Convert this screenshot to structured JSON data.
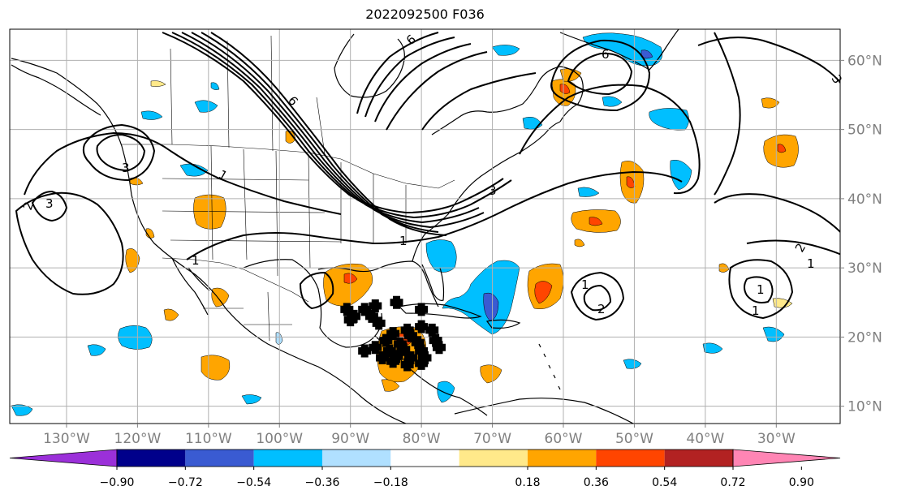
{
  "title": "2022092500 F036",
  "map": {
    "lon_range": [
      -138,
      -21
    ],
    "lat_range": [
      7.5,
      64.5
    ],
    "grid_lons": [
      -130,
      -120,
      -110,
      -100,
      -90,
      -80,
      -70,
      -60,
      -50,
      -40,
      -30
    ],
    "grid_lats": [
      10,
      20,
      30,
      40,
      50,
      60
    ],
    "lon_labels": [
      "130°W",
      "120°W",
      "110°W",
      "100°W",
      "90°W",
      "80°W",
      "70°W",
      "60°W",
      "50°W",
      "40°W",
      "30°W"
    ],
    "lat_labels": [
      "10°N",
      "20°N",
      "30°N",
      "40°N",
      "50°N",
      "60°N"
    ],
    "contour_labels": [
      "6",
      "6",
      "6",
      "3",
      "1",
      "3",
      "1",
      "3",
      "1",
      "2",
      "1",
      "1",
      "2",
      "1",
      "2",
      "1",
      "3"
    ],
    "colors": {
      "coast": "#000000",
      "grid": "#b0b0b0",
      "contour": "#000000"
    }
  },
  "colorbar": {
    "ticks": [
      "−0.90",
      "−0.72",
      "−0.54",
      "−0.36",
      "−0.18",
      "0.18",
      "0.36",
      "0.54",
      "0.72",
      "0.90"
    ],
    "colors": [
      "#9b30d9",
      "#00008b",
      "#3a5bd2",
      "#00bfff",
      "#b0e0ff",
      "#ffffff",
      "#ffe98a",
      "#ffa500",
      "#ff4500",
      "#b22222",
      "#ff85b4"
    ]
  }
}
